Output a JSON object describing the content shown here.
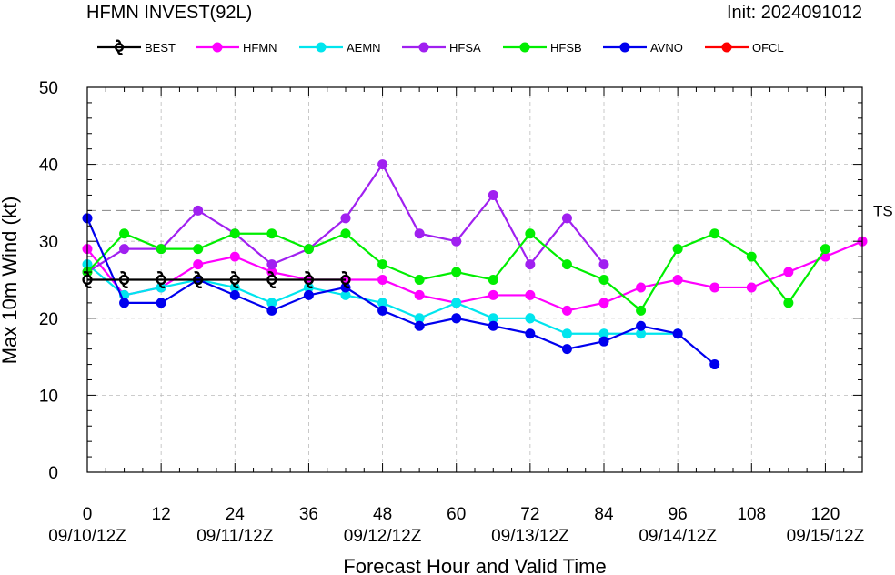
{
  "chart_data": {
    "type": "line",
    "title": "HFMN INVEST(92L)",
    "init_label": "Init: 2024091012",
    "xlabel": "Forecast Hour and Valid Time",
    "ylabel": "Max 10m Wind (kt)",
    "xlim": [
      0,
      126
    ],
    "ylim": [
      0,
      50
    ],
    "x_ticks": [
      0,
      12,
      24,
      36,
      48,
      60,
      72,
      84,
      96,
      108,
      120
    ],
    "x_tick_labels": [
      "0",
      "12",
      "24",
      "36",
      "48",
      "60",
      "72",
      "84",
      "96",
      "108",
      "120"
    ],
    "date_ticks": [
      {
        "x": 0,
        "label": "09/10/12Z"
      },
      {
        "x": 24,
        "label": "09/11/12Z"
      },
      {
        "x": 48,
        "label": "09/12/12Z"
      },
      {
        "x": 72,
        "label": "09/13/12Z"
      },
      {
        "x": 96,
        "label": "09/14/12Z"
      },
      {
        "x": 120,
        "label": "09/15/12Z"
      }
    ],
    "y_ticks": [
      0,
      10,
      20,
      30,
      40,
      50
    ],
    "y_tick_labels": [
      "0",
      "10",
      "20",
      "30",
      "40",
      "50"
    ],
    "grid": true,
    "reference_line": {
      "y": 34,
      "label": "TS"
    },
    "legend_position": "top",
    "series": [
      {
        "name": "BEST",
        "color": "#000000",
        "marker": "hurricane-symbol",
        "x": [
          0,
          6,
          12,
          18,
          24,
          30,
          36,
          42
        ],
        "y": [
          25,
          25,
          25,
          25,
          25,
          25,
          25,
          25
        ]
      },
      {
        "name": "HFMN",
        "color": "#ff00ff",
        "x": [
          0,
          6,
          12,
          18,
          24,
          30,
          36,
          42,
          48,
          54,
          60,
          66,
          72,
          78,
          84,
          90,
          96,
          102,
          108,
          114,
          120,
          126
        ],
        "y": [
          29,
          23,
          24,
          27,
          28,
          26,
          25,
          25,
          25,
          23,
          22,
          23,
          23,
          21,
          22,
          24,
          25,
          24,
          24,
          26,
          28,
          30
        ]
      },
      {
        "name": "AEMN",
        "color": "#00e5ee",
        "x": [
          0,
          6,
          12,
          18,
          24,
          30,
          36,
          42,
          48,
          54,
          60,
          66,
          72,
          78,
          84,
          90,
          96
        ],
        "y": [
          27,
          23,
          24,
          25,
          24,
          22,
          24,
          23,
          22,
          20,
          22,
          20,
          20,
          18,
          18,
          18,
          18
        ]
      },
      {
        "name": "HFSA",
        "color": "#a020f0",
        "x": [
          0,
          6,
          12,
          18,
          24,
          30,
          36,
          42,
          48,
          54,
          60,
          66,
          72,
          78,
          84
        ],
        "y": [
          26,
          29,
          29,
          34,
          31,
          27,
          29,
          33,
          40,
          31,
          30,
          36,
          27,
          33,
          27
        ]
      },
      {
        "name": "HFSB",
        "color": "#00ee00",
        "x": [
          0,
          6,
          12,
          18,
          24,
          30,
          36,
          42,
          48,
          54,
          60,
          66,
          72,
          78,
          84,
          90,
          96,
          102,
          108,
          114,
          120
        ],
        "y": [
          26,
          31,
          29,
          29,
          31,
          31,
          29,
          31,
          27,
          25,
          26,
          25,
          31,
          27,
          25,
          21,
          29,
          31,
          28,
          22,
          29
        ]
      },
      {
        "name": "AVNO",
        "color": "#0000ee",
        "x": [
          0,
          6,
          12,
          18,
          24,
          30,
          36,
          42,
          48,
          54,
          60,
          66,
          72,
          78,
          84,
          90,
          96,
          102
        ],
        "y": [
          33,
          22,
          22,
          25,
          23,
          21,
          23,
          24,
          21,
          19,
          20,
          19,
          18,
          16,
          17,
          19,
          18,
          14
        ]
      },
      {
        "name": "OFCL",
        "color": "#ff0000",
        "x": [],
        "y": []
      }
    ]
  }
}
